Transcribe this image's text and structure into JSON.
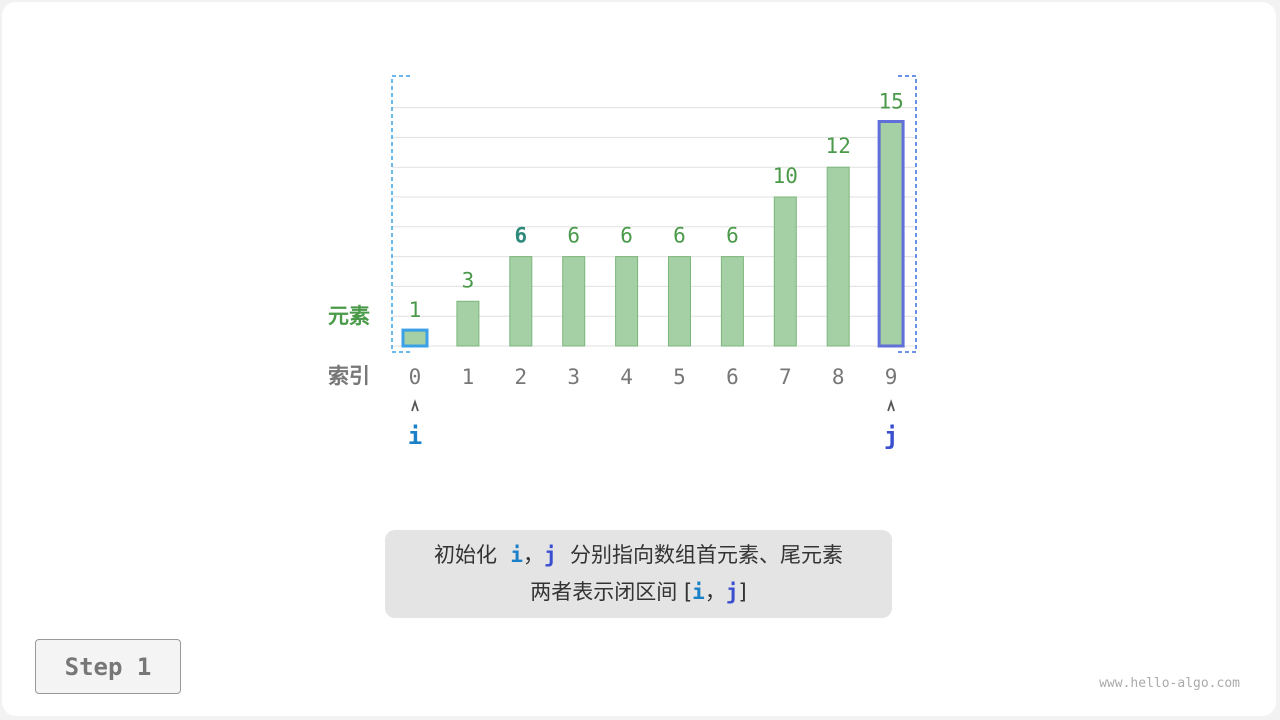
{
  "diagram": {
    "row_labels": {
      "elements": "元素",
      "index": "索引"
    },
    "values": [
      1,
      3,
      6,
      6,
      6,
      6,
      6,
      10,
      12,
      15
    ],
    "indices": [
      "0",
      "1",
      "2",
      "3",
      "4",
      "5",
      "6",
      "7",
      "8",
      "9"
    ],
    "highlighted_value_index": 2,
    "pointers": [
      {
        "label": "i",
        "index": 0,
        "color": "#1a80c8"
      },
      {
        "label": "j",
        "index": 9,
        "color": "#3a4fd0"
      }
    ],
    "colors": {
      "bar_fill": "#a5cfa5",
      "bar_stroke": "#7bb67b",
      "value_text": "#4a9a4a",
      "highlight_value": "#2f8a7a",
      "label_green": "#4a9a4a",
      "index_text": "#777777",
      "bracket": "#3aa0e8"
    }
  },
  "caption": {
    "line1_pre": "初始化",
    "i": "i",
    "comma": "，",
    "j": "j",
    "line1_post": "分别指向数组首元素、尾元素",
    "line2_pre": "两者表示闭区间 [",
    "line2_post": "]"
  },
  "step_label": "Step 1",
  "watermark": "www.hello-algo.com"
}
